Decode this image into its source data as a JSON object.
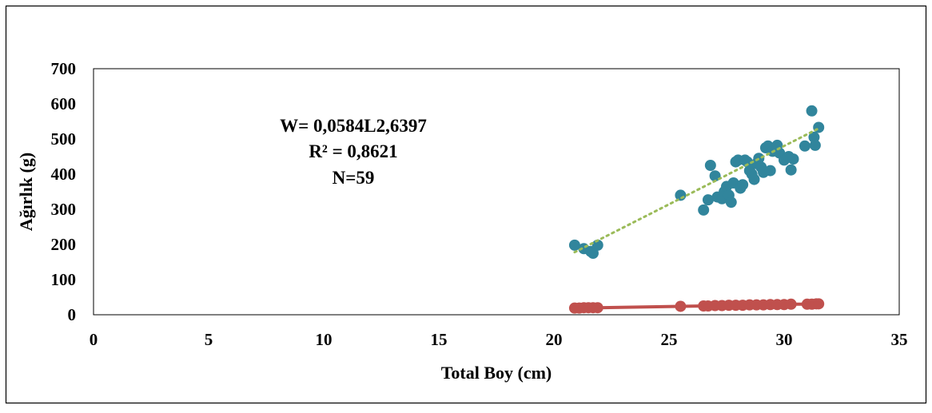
{
  "chart_data": {
    "type": "scatter",
    "title": "",
    "xlabel": "Total Boy (cm)",
    "ylabel": "Ağırlık (g)",
    "xlim": [
      0,
      35
    ],
    "ylim": [
      0,
      700
    ],
    "x_ticks": [
      0,
      5,
      10,
      15,
      20,
      25,
      30,
      35
    ],
    "y_ticks": [
      0,
      100,
      200,
      300,
      400,
      500,
      600,
      700
    ],
    "grid": false,
    "legend": "none",
    "annotation": [
      "W= 0,0584L2,6397",
      "R² = 0,8621",
      "N=59"
    ],
    "series": [
      {
        "kind": "scatter",
        "color": "#31859C",
        "points": [
          [
            20.9,
            198
          ],
          [
            21.3,
            188
          ],
          [
            21.6,
            180
          ],
          [
            21.7,
            175
          ],
          [
            21.9,
            198
          ],
          [
            25.5,
            340
          ],
          [
            26.5,
            298
          ],
          [
            26.7,
            327
          ],
          [
            26.8,
            425
          ],
          [
            27.0,
            395
          ],
          [
            27.1,
            335
          ],
          [
            27.3,
            330
          ],
          [
            27.4,
            350
          ],
          [
            27.5,
            365
          ],
          [
            27.6,
            340
          ],
          [
            27.7,
            320
          ],
          [
            27.8,
            375
          ],
          [
            27.9,
            435
          ],
          [
            28.0,
            440
          ],
          [
            28.1,
            360
          ],
          [
            28.2,
            370
          ],
          [
            28.3,
            440
          ],
          [
            28.4,
            435
          ],
          [
            28.5,
            410
          ],
          [
            28.6,
            400
          ],
          [
            28.7,
            385
          ],
          [
            28.8,
            430
          ],
          [
            28.9,
            445
          ],
          [
            29.0,
            420
          ],
          [
            29.1,
            405
          ],
          [
            29.2,
            475
          ],
          [
            29.3,
            480
          ],
          [
            29.4,
            410
          ],
          [
            29.5,
            465
          ],
          [
            29.7,
            482
          ],
          [
            29.8,
            460
          ],
          [
            30.0,
            440
          ],
          [
            30.2,
            450
          ],
          [
            30.3,
            412
          ],
          [
            30.4,
            443
          ],
          [
            30.9,
            480
          ],
          [
            31.2,
            580
          ],
          [
            31.3,
            505
          ],
          [
            31.35,
            482
          ],
          [
            31.5,
            533
          ]
        ]
      },
      {
        "kind": "trend",
        "color": "#9BBB59",
        "points": [
          [
            20.9,
            178
          ],
          [
            31.5,
            530
          ]
        ]
      },
      {
        "kind": "line",
        "color": "#C0504D",
        "points": [
          [
            20.9,
            19
          ],
          [
            21.1,
            19
          ],
          [
            21.3,
            20
          ],
          [
            21.5,
            20
          ],
          [
            21.7,
            20
          ],
          [
            21.9,
            20
          ],
          [
            25.5,
            24
          ],
          [
            26.5,
            25
          ],
          [
            26.7,
            25
          ],
          [
            27.0,
            26
          ],
          [
            27.3,
            26
          ],
          [
            27.6,
            27
          ],
          [
            27.9,
            27
          ],
          [
            28.2,
            27
          ],
          [
            28.5,
            28
          ],
          [
            28.8,
            28
          ],
          [
            29.1,
            28
          ],
          [
            29.4,
            29
          ],
          [
            29.7,
            29
          ],
          [
            30.0,
            29
          ],
          [
            30.3,
            30
          ],
          [
            31.0,
            30
          ],
          [
            31.2,
            30
          ],
          [
            31.4,
            31
          ],
          [
            31.5,
            31
          ]
        ]
      }
    ]
  }
}
